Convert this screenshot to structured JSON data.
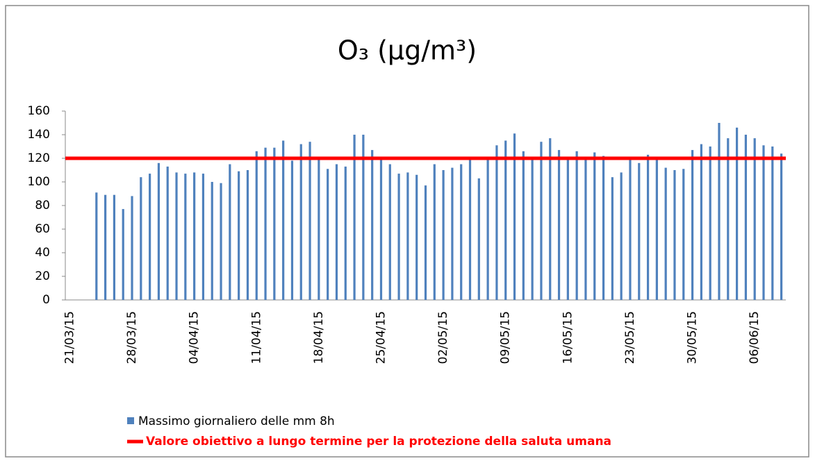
{
  "chart_data": {
    "type": "bar",
    "title": "O₃ (µg/m³)",
    "categories": [
      "21/03/15",
      null,
      null,
      null,
      null,
      null,
      null,
      "28/03/15",
      null,
      null,
      null,
      null,
      null,
      null,
      "04/04/15",
      null,
      null,
      null,
      null,
      null,
      null,
      "11/04/15",
      null,
      null,
      null,
      null,
      null,
      null,
      "18/04/15",
      null,
      null,
      null,
      null,
      null,
      null,
      "25/04/15",
      null,
      null,
      null,
      null,
      null,
      null,
      "02/05/15",
      null,
      null,
      null,
      null,
      null,
      null,
      "09/05/15",
      null,
      null,
      null,
      null,
      null,
      null,
      "16/05/15",
      null,
      null,
      null,
      null,
      null,
      null,
      "23/05/15",
      null,
      null,
      null,
      null,
      null,
      null,
      "30/05/15",
      null,
      null,
      null,
      null,
      null,
      null,
      "06/06/15",
      null,
      null,
      null
    ],
    "series": [
      {
        "name": "Massimo giornaliero delle mm 8h",
        "color": "#4f81bd",
        "values": [
          null,
          null,
          null,
          91,
          89,
          89,
          77,
          88,
          104,
          107,
          116,
          113,
          108,
          107,
          108,
          107,
          100,
          99,
          115,
          109,
          110,
          126,
          129,
          129,
          135,
          118,
          132,
          134,
          119,
          111,
          115,
          113,
          140,
          140,
          127,
          119,
          115,
          107,
          108,
          106,
          97,
          115,
          110,
          112,
          115,
          119,
          103,
          120,
          131,
          135,
          141,
          126,
          121,
          134,
          137,
          127,
          119,
          126,
          121,
          125,
          122,
          104,
          108,
          119,
          116,
          123,
          119,
          112,
          110,
          111,
          127,
          132,
          130,
          150,
          137,
          146,
          140,
          137,
          131,
          130,
          124
        ]
      }
    ],
    "target": {
      "name": "Valore obiettivo a lungo termine per la protezione della saluta umana",
      "value": 120,
      "color": "#ff0000"
    },
    "ylim": [
      0,
      160
    ],
    "yticks": [
      0,
      20,
      40,
      60,
      80,
      100,
      120,
      140,
      160
    ],
    "grid": false
  }
}
